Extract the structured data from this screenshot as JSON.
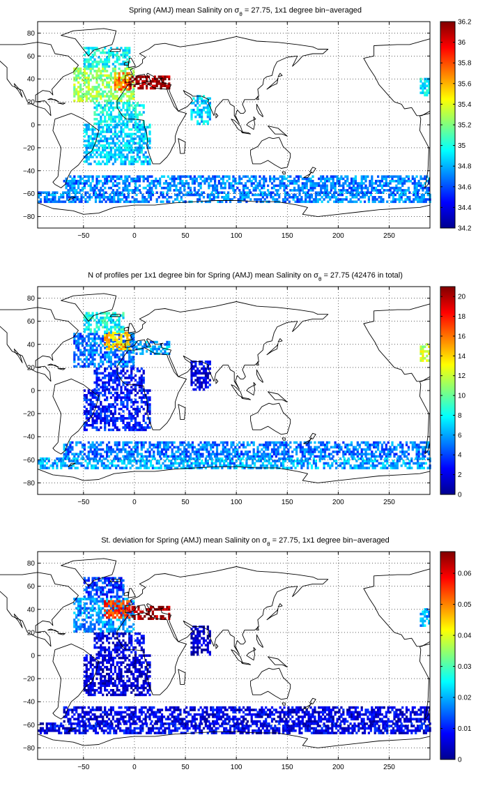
{
  "chart_data": [
    {
      "type": "heatmap",
      "title": "Spring (AMJ) mean Salinity on σθ = 27.75, 1x1 degree bin−averaged",
      "title_parts": [
        "Spring (AMJ) mean Salinity on σ",
        "θ",
        " = 27.75, 1x1 degree bin−averaged"
      ],
      "xlim": [
        -95,
        290
      ],
      "ylim": [
        -90,
        90
      ],
      "xticks": [
        -50,
        0,
        50,
        100,
        150,
        200,
        250
      ],
      "yticks": [
        -80,
        -60,
        -40,
        -20,
        0,
        20,
        40,
        60,
        80
      ],
      "grid": true,
      "colormap": "jet",
      "clim": [
        34.2,
        36.2
      ],
      "colorbar_ticks": [
        34.2,
        34.4,
        34.6,
        34.8,
        35,
        35.2,
        35.4,
        35.6,
        35.8,
        36,
        36.2
      ],
      "regions": [
        {
          "lon": [
            -60,
            0
          ],
          "lat": [
            20,
            50
          ],
          "value": 35.25
        },
        {
          "lon": [
            -20,
            -5
          ],
          "lat": [
            30,
            45
          ],
          "value": 35.7
        },
        {
          "lon": [
            -12,
            -5
          ],
          "lat": [
            34,
            40
          ],
          "value": 36.05
        },
        {
          "lon": [
            -5,
            35
          ],
          "lat": [
            31,
            42
          ],
          "value": 36.15
        },
        {
          "lon": [
            -50,
            -5
          ],
          "lat": [
            50,
            68
          ],
          "value": 34.95
        },
        {
          "lon": [
            -40,
            10
          ],
          "lat": [
            0,
            20
          ],
          "value": 34.95
        },
        {
          "lon": [
            -50,
            15
          ],
          "lat": [
            -35,
            0
          ],
          "value": 34.85
        },
        {
          "lon": [
            55,
            75
          ],
          "lat": [
            0,
            25
          ],
          "value": 34.85
        },
        {
          "lon": [
            -70,
            290
          ],
          "lat": [
            -58,
            -45
          ],
          "value": 34.7
        },
        {
          "lon": [
            -95,
            290
          ],
          "lat": [
            -68,
            -58
          ],
          "value": 34.7
        },
        {
          "lon": [
            280,
            290
          ],
          "lat": [
            25,
            40
          ],
          "value": 34.9
        }
      ]
    },
    {
      "type": "heatmap",
      "title": "N of profiles per 1x1 degree bin for Spring (AMJ) mean Salinity on σθ = 27.75 (42476 in total)",
      "title_parts": [
        "N of profiles per 1x1 degree bin for Spring (AMJ) mean Salinity on σ",
        "θ",
        " = 27.75 (42476 in total)"
      ],
      "xlim": [
        -95,
        290
      ],
      "ylim": [
        -90,
        90
      ],
      "xticks": [
        -50,
        0,
        50,
        100,
        150,
        200,
        250
      ],
      "yticks": [
        -80,
        -60,
        -40,
        -20,
        0,
        20,
        40,
        60,
        80
      ],
      "grid": true,
      "colormap": "jet",
      "clim": [
        0,
        21
      ],
      "colorbar_ticks": [
        0,
        2,
        4,
        6,
        8,
        10,
        12,
        14,
        16,
        18,
        20
      ],
      "regions": [
        {
          "lon": [
            -60,
            0
          ],
          "lat": [
            20,
            50
          ],
          "value": 5
        },
        {
          "lon": [
            -30,
            -5
          ],
          "lat": [
            35,
            50
          ],
          "value": 14
        },
        {
          "lon": [
            -50,
            -10
          ],
          "lat": [
            50,
            68
          ],
          "value": 8
        },
        {
          "lon": [
            -5,
            35
          ],
          "lat": [
            31,
            42
          ],
          "value": 6
        },
        {
          "lon": [
            -40,
            10
          ],
          "lat": [
            0,
            20
          ],
          "value": 3
        },
        {
          "lon": [
            -50,
            15
          ],
          "lat": [
            -35,
            0
          ],
          "value": 3
        },
        {
          "lon": [
            55,
            75
          ],
          "lat": [
            0,
            25
          ],
          "value": 2
        },
        {
          "lon": [
            -70,
            290
          ],
          "lat": [
            -58,
            -45
          ],
          "value": 5
        },
        {
          "lon": [
            -95,
            290
          ],
          "lat": [
            -68,
            -58
          ],
          "value": 6
        },
        {
          "lon": [
            280,
            290
          ],
          "lat": [
            25,
            40
          ],
          "value": 12
        }
      ]
    },
    {
      "type": "heatmap",
      "title": "St. deviation for Spring (AMJ) mean Salinity on σθ = 27.75, 1x1 degree bin−averaged",
      "title_parts": [
        "St. deviation for Spring (AMJ) mean Salinity on σ",
        "θ",
        " = 27.75, 1x1 degree bin−averaged"
      ],
      "xlim": [
        -95,
        290
      ],
      "ylim": [
        -90,
        90
      ],
      "xticks": [
        -50,
        0,
        50,
        100,
        150,
        200,
        250
      ],
      "yticks": [
        -80,
        -60,
        -40,
        -20,
        0,
        20,
        40,
        60,
        80
      ],
      "grid": true,
      "colormap": "jet",
      "clim": [
        0,
        0.067
      ],
      "colorbar_ticks": [
        0,
        0.01,
        0.02,
        0.03,
        0.04,
        0.05,
        0.06
      ],
      "regions": [
        {
          "lon": [
            -60,
            0
          ],
          "lat": [
            20,
            50
          ],
          "value": 0.018
        },
        {
          "lon": [
            -30,
            -5
          ],
          "lat": [
            32,
            48
          ],
          "value": 0.055
        },
        {
          "lon": [
            -5,
            35
          ],
          "lat": [
            31,
            42
          ],
          "value": 0.065
        },
        {
          "lon": [
            -50,
            -10
          ],
          "lat": [
            50,
            68
          ],
          "value": 0.012
        },
        {
          "lon": [
            -40,
            10
          ],
          "lat": [
            0,
            20
          ],
          "value": 0.006
        },
        {
          "lon": [
            -50,
            15
          ],
          "lat": [
            -35,
            0
          ],
          "value": 0.005
        },
        {
          "lon": [
            55,
            75
          ],
          "lat": [
            0,
            25
          ],
          "value": 0.004
        },
        {
          "lon": [
            -70,
            290
          ],
          "lat": [
            -58,
            -45
          ],
          "value": 0.006
        },
        {
          "lon": [
            -95,
            290
          ],
          "lat": [
            -68,
            -58
          ],
          "value": 0.007
        },
        {
          "lon": [
            280,
            290
          ],
          "lat": [
            25,
            40
          ],
          "value": 0.02
        }
      ]
    }
  ]
}
